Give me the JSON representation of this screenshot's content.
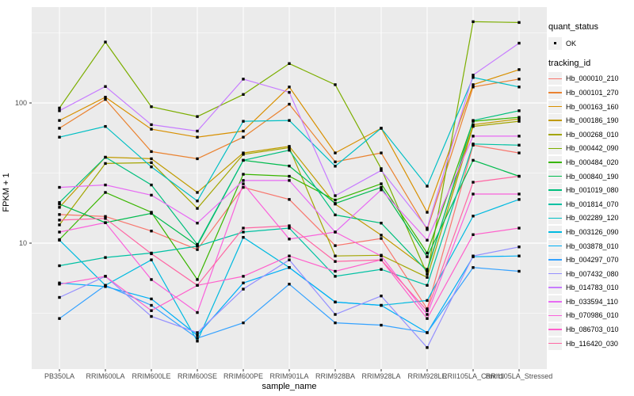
{
  "figure": {
    "x_axis_title": "sample_name",
    "y_axis_title": "FPKM + 1",
    "y_tick_labels": [
      "100",
      "10"
    ],
    "legend": {
      "quant_status_title": "quant_status",
      "quant_status_items": [
        "OK"
      ],
      "tracking_id_title": "tracking_id",
      "marker_icon": "black-square-point-marker"
    },
    "colors": {
      "panel_background": "#EBEBEB",
      "grid": "#FFFFFF",
      "points": "#000000",
      "tick_text": "#4D4D4D",
      "legend_key_background": "#F0F0F0"
    }
  },
  "chart_data": {
    "type": "line",
    "title": "",
    "xlabel": "sample_name",
    "ylabel": "FPKM + 1",
    "y_scale": "log10",
    "ylim": [
      1.26,
      480
    ],
    "y_major_ticks": [
      100,
      10
    ],
    "y_minor_ticks": [
      316.2,
      31.62,
      3.162
    ],
    "grid": true,
    "legend_position": "right",
    "point_marker": "small black square (quant_status = OK)",
    "x": [
      "PB350LA",
      "RRIM600LA",
      "RRIM600LE",
      "RRIM600SE",
      "RRIM600PE",
      "RRIM901LA",
      "RRIM928BA",
      "RRIM928LA",
      "RRIM928LE",
      "RRII105LA_Control",
      "RRII105LA_Stressed"
    ],
    "series": [
      {
        "name": "Hb_000010_210",
        "color": "#F8766D",
        "values": [
          16,
          15.5,
          12.2,
          9,
          25,
          20.5,
          9.6,
          10.8,
          3.4,
          50,
          44
        ]
      },
      {
        "name": "Hb_000101_270",
        "color": "#EA8331",
        "values": [
          66,
          106,
          45,
          40,
          57,
          98,
          38,
          44,
          12.5,
          130,
          148
        ]
      },
      {
        "name": "Hb_000163_160",
        "color": "#D89000",
        "values": [
          75,
          110,
          65,
          57,
          63,
          130,
          44,
          66,
          16.6,
          135,
          173
        ]
      },
      {
        "name": "Hb_000186_190",
        "color": "#C09B00",
        "values": [
          18,
          41,
          40,
          23,
          44,
          49,
          19,
          11.4,
          6.5,
          70,
          77
        ]
      },
      {
        "name": "Hb_000268_010",
        "color": "#A3A500",
        "values": [
          13.5,
          37,
          37.5,
          17.7,
          43,
          48,
          8.1,
          8.2,
          5.7,
          68,
          74
        ]
      },
      {
        "name": "Hb_000442_090",
        "color": "#7CAE00",
        "values": [
          92,
          272,
          94,
          80,
          115,
          191,
          135,
          34,
          6,
          380,
          375
        ]
      },
      {
        "name": "Hb_000484_020",
        "color": "#39B600",
        "values": [
          10.6,
          23,
          16.6,
          5.5,
          31,
          30,
          20.3,
          26.5,
          8.5,
          74,
          79
        ]
      },
      {
        "name": "Hb_000840_190",
        "color": "#00BB4E",
        "values": [
          19,
          14,
          16.3,
          9.6,
          39,
          35.5,
          19.2,
          25,
          8,
          39,
          30
        ]
      },
      {
        "name": "Hb_001019_080",
        "color": "#00BF7D",
        "values": [
          19.5,
          41,
          26,
          9.8,
          39,
          46,
          15.9,
          13.9,
          6.3,
          75,
          88
        ]
      },
      {
        "name": "Hb_001814_070",
        "color": "#00C1A3",
        "values": [
          6.9,
          7.9,
          8.5,
          9.5,
          12,
          12.8,
          5.8,
          6.5,
          5,
          51,
          50
        ]
      },
      {
        "name": "Hb_002289_120",
        "color": "#00BFC4",
        "values": [
          57,
          68,
          35,
          20,
          74,
          75,
          35.4,
          66,
          25.5,
          152,
          130
        ]
      },
      {
        "name": "Hb_003126_090",
        "color": "#00BAE0",
        "values": [
          10.5,
          5,
          7.6,
          2,
          11,
          6.7,
          3.8,
          3.6,
          3.9,
          15.6,
          20.5
        ]
      },
      {
        "name": "Hb_003878_010",
        "color": "#00B0F6",
        "values": [
          5.2,
          4.9,
          4,
          2.2,
          5.2,
          6.7,
          3.8,
          3.6,
          2.3,
          8,
          8.1
        ]
      },
      {
        "name": "Hb_004297_070",
        "color": "#35A2FF",
        "values": [
          2.9,
          5,
          3.6,
          2.1,
          2.7,
          5.1,
          2.7,
          2.6,
          2.3,
          6.7,
          6.3
        ]
      },
      {
        "name": "Hb_007432_080",
        "color": "#9590FF",
        "values": [
          4.1,
          5.8,
          3,
          2.3,
          4.7,
          7.6,
          3.1,
          4.2,
          1.8,
          8.1,
          9.4
        ]
      },
      {
        "name": "Hb_014783_010",
        "color": "#C77CFF",
        "values": [
          88,
          131,
          70,
          63,
          148,
          119,
          21.8,
          33,
          12.8,
          158,
          267
        ]
      },
      {
        "name": "Hb_033594_110",
        "color": "#E76BF3",
        "values": [
          25,
          26,
          22,
          13.9,
          28,
          28,
          12,
          24,
          10.5,
          58,
          58
        ]
      },
      {
        "name": "Hb_070986_010",
        "color": "#FA62DB",
        "values": [
          12,
          14,
          5.5,
          3.2,
          26.5,
          10.7,
          12,
          8.1,
          3.1,
          22.4,
          22.4
        ]
      },
      {
        "name": "Hb_086703_010",
        "color": "#FF61CC",
        "values": [
          5.1,
          5.8,
          3.3,
          5,
          5.8,
          8.1,
          6.3,
          7.6,
          2.9,
          11.5,
          12.8
        ]
      },
      {
        "name": "Hb_116420_030",
        "color": "#FF67A4",
        "values": [
          14.6,
          15,
          8.4,
          5,
          12.8,
          13.3,
          7.4,
          7.6,
          3.3,
          27.2,
          30
        ]
      }
    ]
  }
}
